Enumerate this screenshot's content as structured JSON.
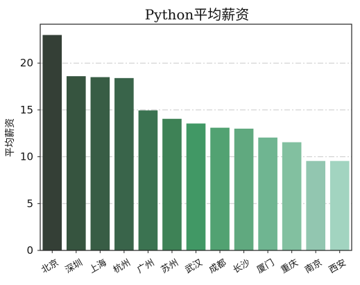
{
  "chart_data": {
    "type": "bar",
    "title": "Python平均薪资",
    "xlabel": "",
    "ylabel": "平均薪资",
    "categories": [
      "北京",
      "深圳",
      "上海",
      "杭州",
      "广州",
      "苏州",
      "武汉",
      "成都",
      "长沙",
      "厦门",
      "重庆",
      "南京",
      "西安"
    ],
    "values": [
      23.0,
      18.6,
      18.5,
      18.4,
      14.95,
      14.05,
      13.55,
      13.1,
      13.0,
      12.05,
      11.55,
      9.55,
      9.55
    ],
    "ylim": [
      0,
      24.15
    ],
    "yticks": [
      0,
      5,
      10,
      15,
      20
    ],
    "grid": true,
    "legend": "none",
    "colors": [
      "#343f36",
      "#36543f",
      "#385d45",
      "#39644a",
      "#3b7351",
      "#3e8256",
      "#419865",
      "#52a272",
      "#60a97f",
      "#6fb591",
      "#82c0a0",
      "#92c6b0",
      "#a2d4c0"
    ]
  }
}
